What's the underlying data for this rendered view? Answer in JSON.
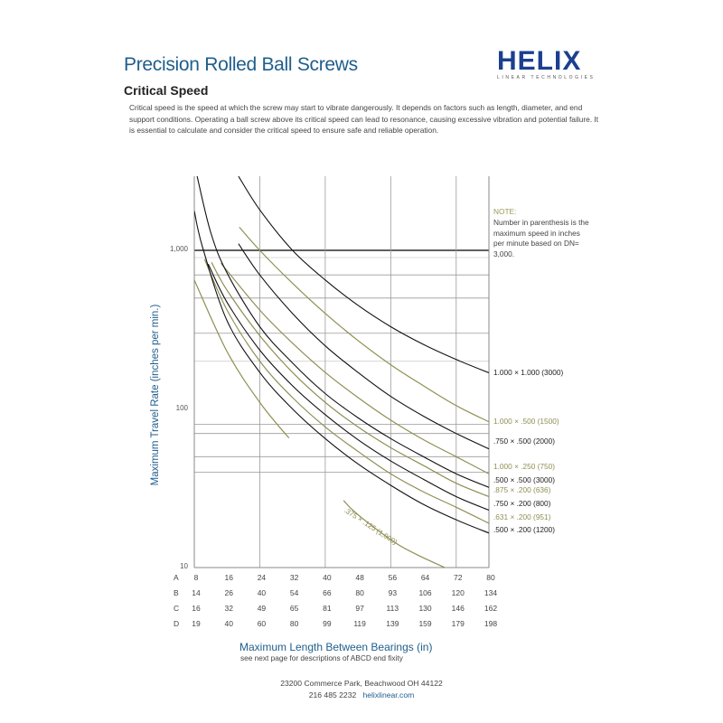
{
  "header": {
    "title": "Precision Rolled Ball Screws",
    "subtitle": "Critical Speed",
    "logo_word": "HELIX",
    "logo_tagline": "LINEAR TECHNOLOGIES"
  },
  "intro": "Critical speed is the speed at which the screw may start to vibrate dangerously. It depends on factors such as length, diameter, and end support conditions. Operating a ball screw above its critical speed can lead to resonance, causing excessive vibration and potential failure. It is essential to calculate and consider the critical speed to ensure safe and reliable operation.",
  "note": {
    "heading": "NOTE:",
    "body": "Number in parenthesis is the maximum speed in inches per minute based on DN= 3,000."
  },
  "colors": {
    "accent_blue": "#1f5e8c",
    "curve_black": "#111111",
    "curve_olive": "#8f8f55",
    "grid": "#9a9a9a"
  },
  "footer": {
    "address": "23200 Commerce Park, Beachwood OH 44122",
    "phone": "216 485 2232",
    "website": "helixlinear.com"
  },
  "chart_data": {
    "type": "line",
    "title": "Critical Speed",
    "xlabel": "Maximum Length Between Bearings (in)",
    "xlabel_note": "see next page for descriptions of ABCD end fixity",
    "ylabel": "Maximum Travel Rate (inches per min.)",
    "yscale": "log",
    "ylim": [
      10,
      3000
    ],
    "xlim": [
      8,
      80
    ],
    "y_ticks": [
      "10",
      "100",
      "1,000"
    ],
    "y_tick_values": [
      10,
      100,
      1000
    ],
    "y_gridlines": [
      40,
      50,
      70,
      80,
      200,
      300,
      500,
      700,
      900,
      1000
    ],
    "x_gridlines": [
      24,
      40,
      56,
      72
    ],
    "x_axis_rows": [
      {
        "fixity": "A",
        "values": [
          8,
          16,
          24,
          32,
          40,
          48,
          56,
          64,
          72,
          80
        ]
      },
      {
        "fixity": "B",
        "values": [
          14,
          26,
          40,
          54,
          66,
          80,
          93,
          106,
          120,
          134
        ]
      },
      {
        "fixity": "C",
        "values": [
          16,
          32,
          49,
          65,
          81,
          97,
          113,
          130,
          146,
          162
        ]
      },
      {
        "fixity": "D",
        "values": [
          19,
          40,
          60,
          80,
          99,
          119,
          139,
          159,
          179,
          198
        ]
      }
    ],
    "series": [
      {
        "name": "1.000 x 1.000 (3000)",
        "color": "black",
        "label_y": 413,
        "points": [
          [
            18.8,
            2930
          ],
          [
            24,
            1800
          ],
          [
            32,
            1000
          ],
          [
            40,
            650
          ],
          [
            48,
            450
          ],
          [
            56,
            330
          ],
          [
            64,
            255
          ],
          [
            72,
            205
          ],
          [
            80,
            169
          ]
        ]
      },
      {
        "name": "1.000 x .500 (1500)",
        "color": "olive",
        "label_y": 467,
        "points": [
          [
            19.0,
            1400
          ],
          [
            24,
            1000
          ],
          [
            32,
            620
          ],
          [
            40,
            400
          ],
          [
            48,
            270
          ],
          [
            56,
            190
          ],
          [
            64,
            140
          ],
          [
            72,
            105
          ],
          [
            80,
            83
          ]
        ]
      },
      {
        "name": ".750 x .500 (2000)",
        "color": "black",
        "label_y": 489,
        "points": [
          [
            18.8,
            1100
          ],
          [
            24,
            700
          ],
          [
            32,
            400
          ],
          [
            40,
            250
          ],
          [
            48,
            170
          ],
          [
            56,
            120
          ],
          [
            64,
            90
          ],
          [
            72,
            70
          ],
          [
            80,
            56
          ]
        ]
      },
      {
        "name": "1.000 x .250 (750)",
        "color": "olive",
        "label_y": 517,
        "points": [
          [
            14.5,
            830
          ],
          [
            24,
            420
          ],
          [
            32,
            260
          ],
          [
            40,
            170
          ],
          [
            48,
            118
          ],
          [
            56,
            85
          ],
          [
            64,
            64
          ],
          [
            72,
            50
          ],
          [
            80,
            39
          ]
        ]
      },
      {
        "name": ".500 x .500 (3000)",
        "color": "black",
        "label_y": 532,
        "points": [
          [
            8.6,
            3000
          ],
          [
            12,
            1300
          ],
          [
            16,
            720
          ],
          [
            24,
            330
          ],
          [
            32,
            195
          ],
          [
            40,
            125
          ],
          [
            48,
            88
          ],
          [
            56,
            65
          ],
          [
            64,
            50
          ],
          [
            72,
            39
          ],
          [
            80,
            32
          ]
        ]
      },
      {
        "name": ".875 x .200 (636)",
        "color": "olive",
        "label_y": 543,
        "points": [
          [
            12.2,
            840
          ],
          [
            16,
            560
          ],
          [
            24,
            290
          ],
          [
            32,
            170
          ],
          [
            40,
            110
          ],
          [
            48,
            77
          ],
          [
            56,
            57
          ],
          [
            64,
            44
          ],
          [
            72,
            34
          ],
          [
            80,
            28
          ]
        ]
      },
      {
        "name": ".750 x .200 (800)",
        "color": "black",
        "label_y": 558,
        "points": [
          [
            11.4,
            820
          ],
          [
            16,
            470
          ],
          [
            24,
            235
          ],
          [
            32,
            140
          ],
          [
            40,
            92
          ],
          [
            48,
            64
          ],
          [
            56,
            47
          ],
          [
            64,
            36
          ],
          [
            72,
            28
          ],
          [
            80,
            23
          ]
        ]
      },
      {
        "name": ".631 x .200 (951)",
        "color": "olive",
        "label_y": 573,
        "points": [
          [
            10.5,
            880
          ],
          [
            16,
            420
          ],
          [
            24,
            200
          ],
          [
            32,
            118
          ],
          [
            40,
            77
          ],
          [
            48,
            54
          ],
          [
            56,
            39
          ],
          [
            64,
            30
          ],
          [
            72,
            24
          ],
          [
            80,
            19
          ]
        ]
      },
      {
        "name": ".500 x .200 (1200)",
        "color": "black",
        "label_y": 587,
        "points": [
          [
            8,
            1770
          ],
          [
            10,
            1050
          ],
          [
            16,
            360
          ],
          [
            24,
            170
          ],
          [
            32,
            100
          ],
          [
            40,
            65
          ],
          [
            48,
            45
          ],
          [
            56,
            33
          ],
          [
            64,
            25
          ],
          [
            72,
            20
          ],
          [
            80,
            16.5
          ]
        ]
      },
      {
        "name": ".375 x .125 (1,000)",
        "color": "olive",
        "inline_label": true,
        "points": [
          [
            8,
            650
          ],
          [
            16,
            230
          ],
          [
            24,
            110
          ],
          [
            32,
            62
          ],
          [
            40,
            38
          ],
          [
            46,
            24
          ],
          [
            56,
            15
          ],
          [
            62,
            12.2
          ],
          [
            69.2,
            10
          ]
        ]
      }
    ]
  }
}
